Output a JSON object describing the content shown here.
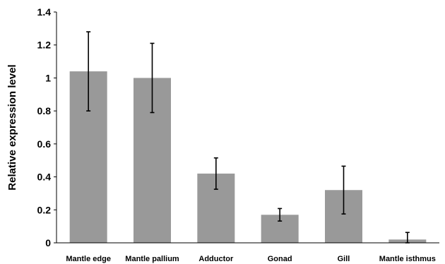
{
  "chart_data": {
    "type": "bar",
    "title": "",
    "xlabel": "",
    "ylabel": "Relative expression level",
    "categories": [
      "Mantle edge",
      "Mantle pallium",
      "Adductor",
      "Gonad",
      "Gill",
      "Mantle isthmus"
    ],
    "series": [
      {
        "values": [
          1.04,
          1.0,
          0.42,
          0.17,
          0.32,
          0.02
        ],
        "error": [
          0.24,
          0.21,
          0.095,
          0.038,
          0.145,
          0.043
        ]
      }
    ],
    "ylim": [
      0,
      1.4
    ],
    "yticks": [
      0,
      0.2,
      0.4,
      0.6,
      0.8,
      1.0,
      1.2,
      1.4
    ],
    "ytick_labels": [
      "0",
      "0.2",
      "0.4",
      "0.6",
      "0.8",
      "1",
      "1.2",
      "1.4"
    ],
    "grid": false,
    "legend": "none",
    "bar_color": "#999999",
    "error_bar_color": "#000000",
    "axis_color": "#000000"
  }
}
